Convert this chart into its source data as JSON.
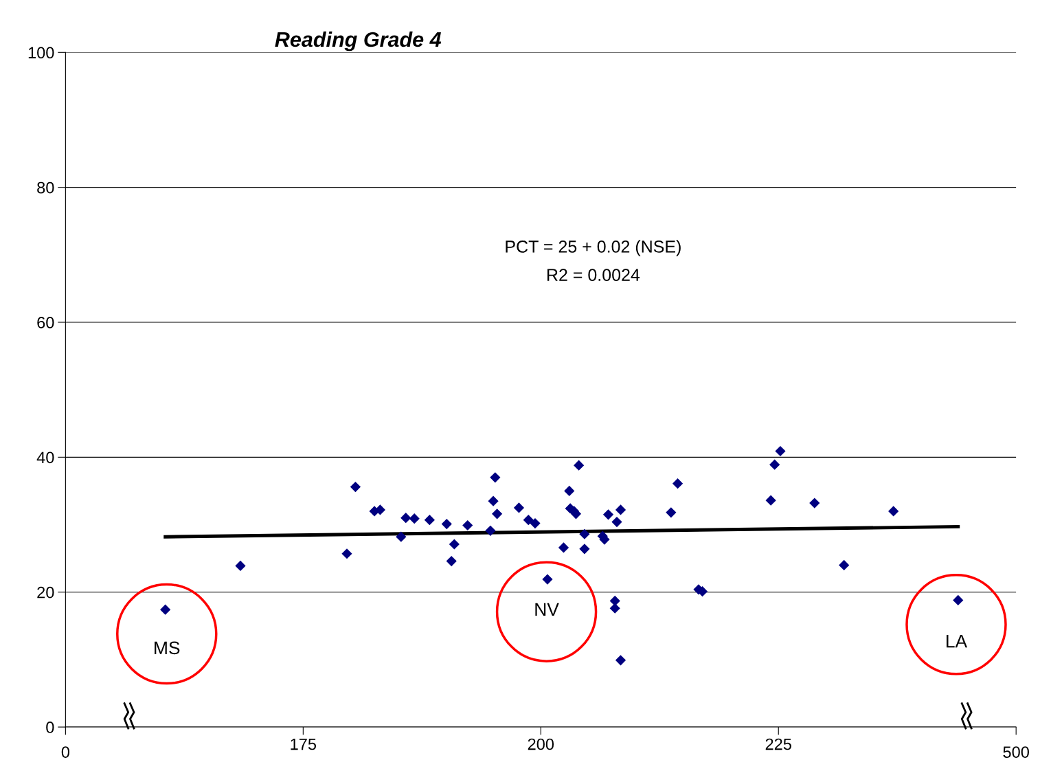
{
  "chart_data": {
    "type": "scatter",
    "title": "Reading Grade 4",
    "xlim": [
      150,
      250
    ],
    "xticks": [
      {
        "value": 150,
        "label": null
      },
      175,
      200,
      225,
      {
        "value": 250,
        "label": null
      }
    ],
    "ylim": [
      0,
      100
    ],
    "yticks": [
      0,
      20,
      40,
      60,
      80,
      100
    ],
    "grid": "y",
    "legend": false,
    "series": [
      {
        "color": "#000080",
        "marker": "diamond",
        "x": [
          160.5,
          168.4,
          179.6,
          180.5,
          182.5,
          183.1,
          185.3,
          185.8,
          186.7,
          188.3,
          190.1,
          190.6,
          190.9,
          192.3,
          194.7,
          195.0,
          195.2,
          195.4,
          197.7,
          198.7,
          199.4,
          200.7,
          202.4,
          203.0,
          203.1,
          203.5,
          203.7,
          204.0,
          204.6,
          204.6,
          206.5,
          206.7,
          207.1,
          207.8,
          207.8,
          208.0,
          208.4,
          208.4,
          213.7,
          214.4,
          216.6,
          217.0,
          224.2,
          224.6,
          225.2,
          228.8,
          231.9,
          237.1,
          243.9
        ],
        "values": [
          17.4,
          23.9,
          25.7,
          35.6,
          32.0,
          32.2,
          28.2,
          31.0,
          30.9,
          30.7,
          30.1,
          24.6,
          27.1,
          29.9,
          29.1,
          33.5,
          37.0,
          31.6,
          32.5,
          30.7,
          30.2,
          21.9,
          26.6,
          35.0,
          32.4,
          32.0,
          31.6,
          38.8,
          26.4,
          28.6,
          28.3,
          27.8,
          31.5,
          17.6,
          18.7,
          30.4,
          32.2,
          9.9,
          31.8,
          36.1,
          20.4,
          20.1,
          33.6,
          38.9,
          40.9,
          33.2,
          24.0,
          32.0,
          18.8
        ]
      },
      {
        "type": "line",
        "color": "#000000",
        "x": [
          160.5,
          243.9
        ],
        "values": [
          28.2,
          29.7
        ]
      }
    ],
    "annotations": [
      "PCT = 25 + 0.02 (NSE)",
      "R2 = 0.0024",
      "MS",
      "NV",
      "LA",
      "0",
      "500"
    ]
  }
}
